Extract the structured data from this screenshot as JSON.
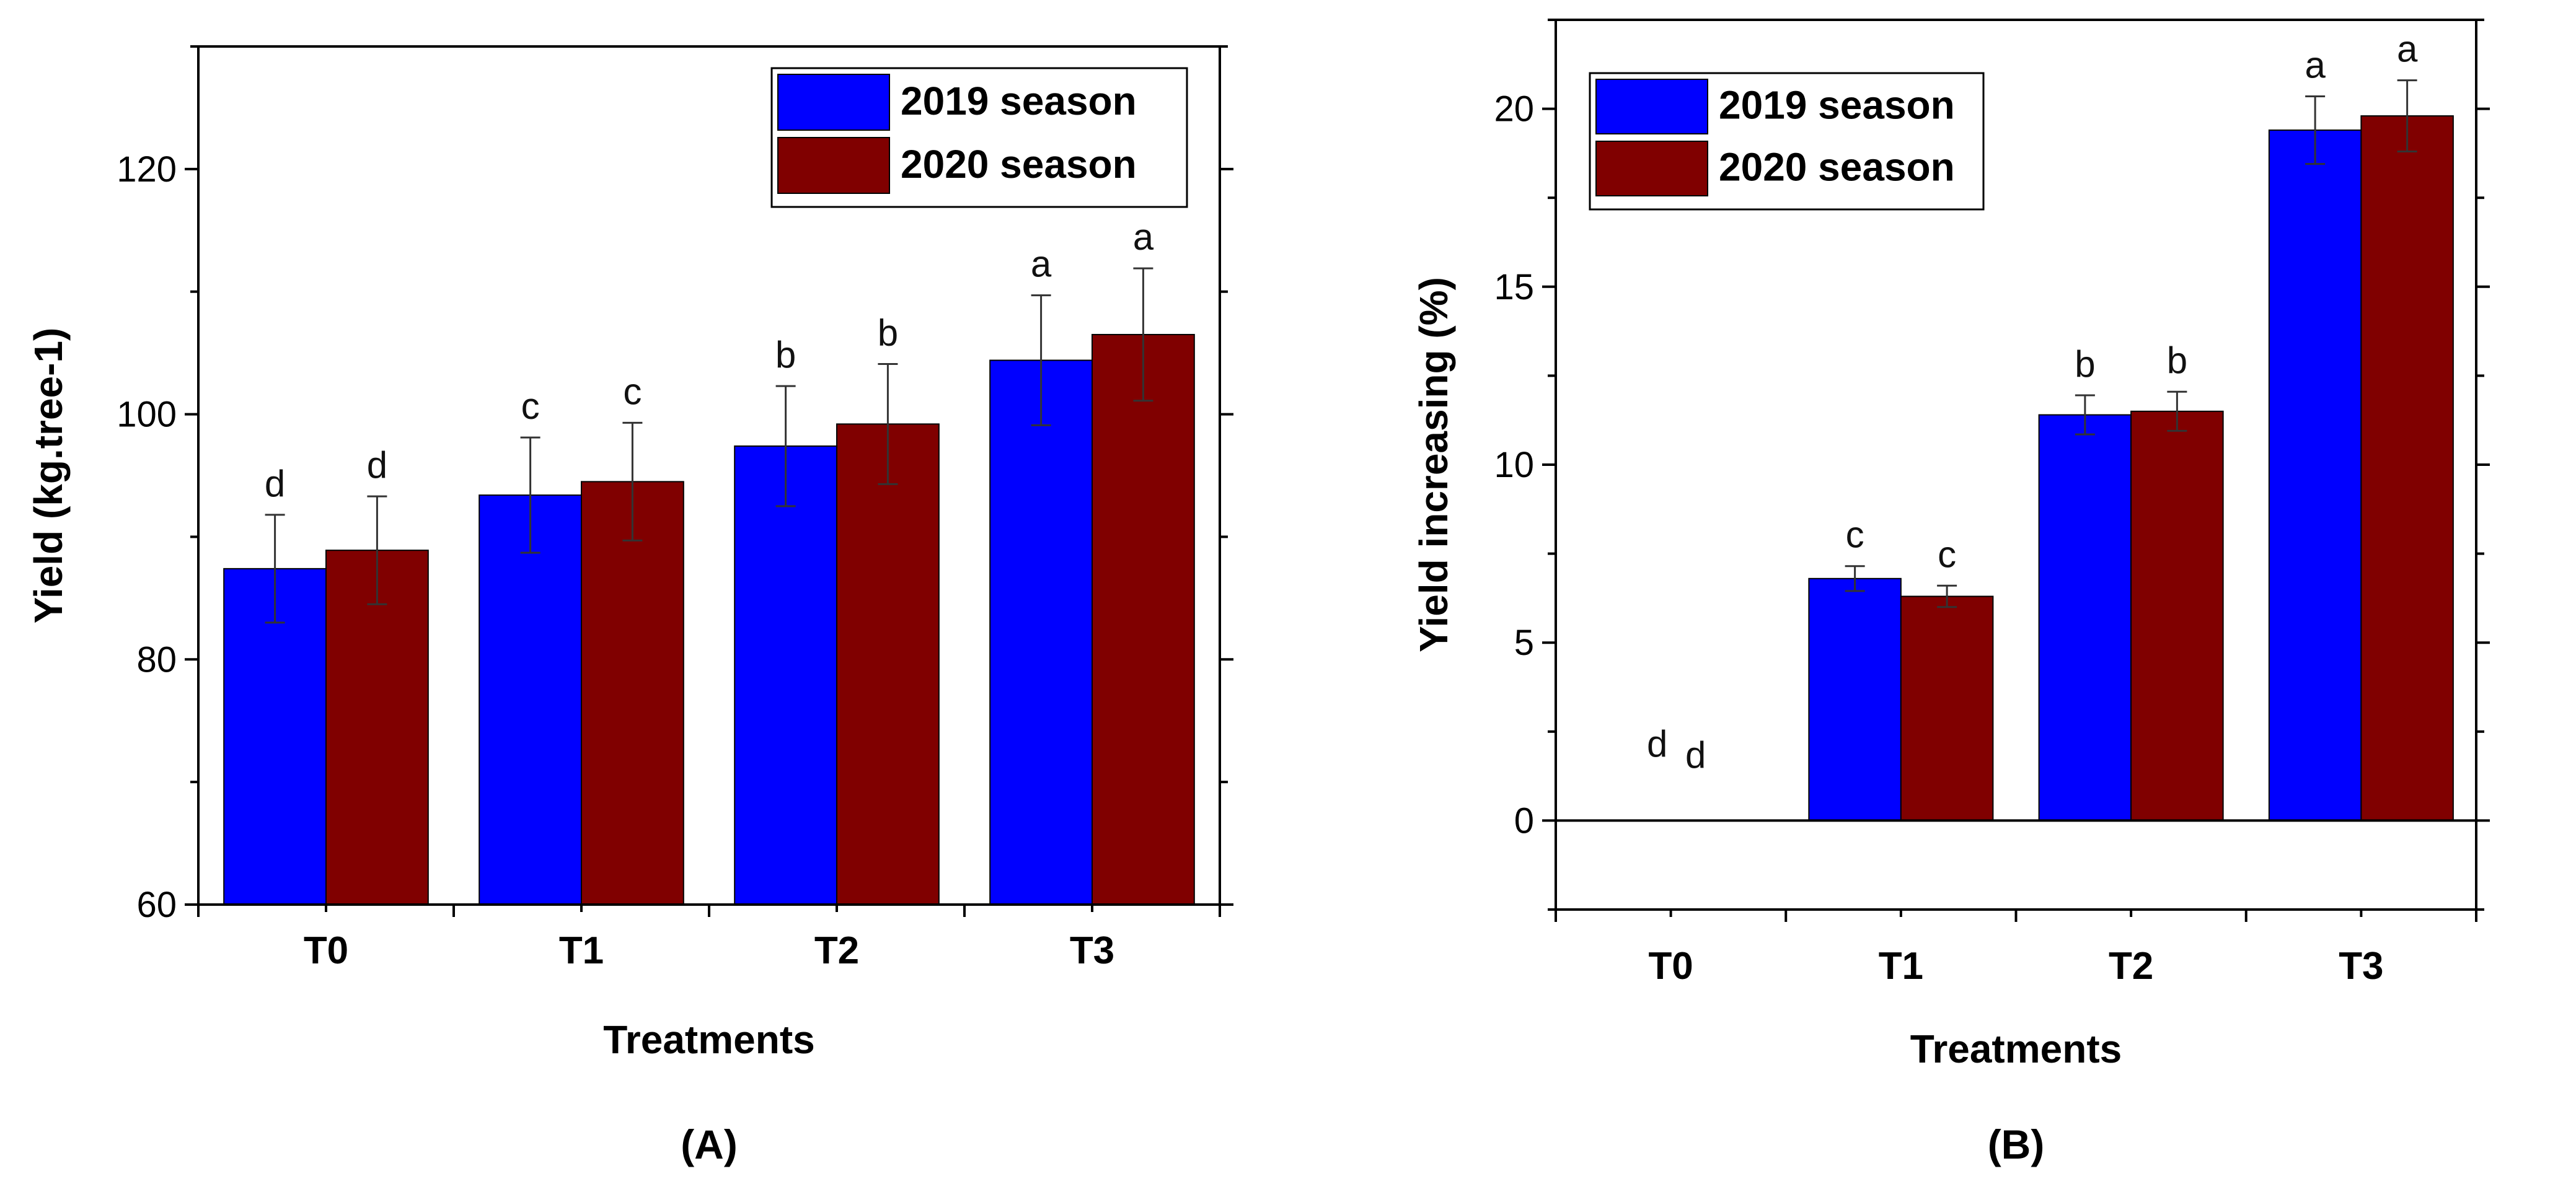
{
  "colors": {
    "series_2019": "#0000ff",
    "series_2020": "#800000",
    "axis": "#000000"
  },
  "chart_data": [
    {
      "type": "bar",
      "panel_label": "(A)",
      "categories": [
        "T0",
        "T1",
        "T2",
        "T3"
      ],
      "xlabel": "Treatments",
      "ylabel": "Yield (kg.tree-1)",
      "ylim": [
        60,
        130
      ],
      "yticks": [
        60,
        80,
        100,
        120
      ],
      "legend_position": "top-right",
      "series": [
        {
          "name": "2019 season",
          "values": [
            87.4,
            93.4,
            97.4,
            104.4
          ],
          "errors": [
            4.4,
            4.7,
            4.9,
            5.3
          ],
          "letters": [
            "d",
            "c",
            "b",
            "a"
          ]
        },
        {
          "name": "2020 season",
          "values": [
            88.9,
            94.5,
            99.2,
            106.5
          ],
          "errors": [
            4.4,
            4.8,
            4.9,
            5.4
          ],
          "letters": [
            "d",
            "c",
            "b",
            "a"
          ]
        }
      ]
    },
    {
      "type": "bar",
      "panel_label": "(B)",
      "categories": [
        "T0",
        "T1",
        "T2",
        "T3"
      ],
      "xlabel": "Treatments",
      "ylabel": "Yield increasing (%)",
      "ylim": [
        -2.5,
        22.5
      ],
      "yticks": [
        0,
        5,
        10,
        15,
        20
      ],
      "legend_position": "top-left",
      "series": [
        {
          "name": "2019 season",
          "values": [
            0,
            6.8,
            11.4,
            19.4
          ],
          "errors": [
            0,
            0.35,
            0.55,
            0.95
          ],
          "letters": [
            "d",
            "c",
            "b",
            "a"
          ]
        },
        {
          "name": "2020 season",
          "values": [
            0,
            6.3,
            11.5,
            19.8
          ],
          "errors": [
            0,
            0.3,
            0.55,
            1.0
          ],
          "letters": [
            "d",
            "c",
            "b",
            "a"
          ]
        }
      ]
    }
  ]
}
